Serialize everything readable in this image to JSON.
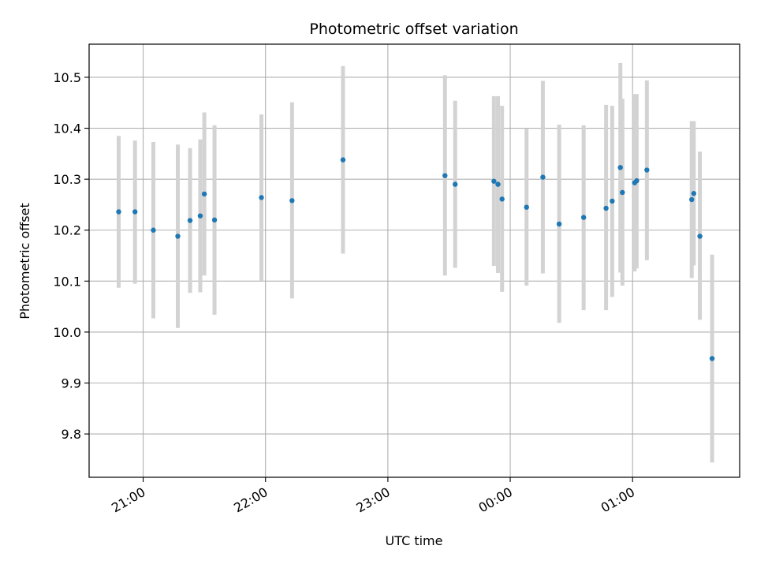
{
  "chart_data": {
    "type": "scatter",
    "title": "Photometric offset variation",
    "xlabel": "UTC time",
    "ylabel": "Photometric offset",
    "x_axis": "time",
    "x_ticks": [
      "21:00",
      "22:00",
      "23:00",
      "00:00",
      "01:00"
    ],
    "x_tick_minutes": [
      1260,
      1320,
      1380,
      1440,
      1500
    ],
    "xlim_minutes": [
      1233.5,
      1552.5
    ],
    "ylim": [
      9.715,
      10.565
    ],
    "y_ticks": [
      9.8,
      9.9,
      10.0,
      10.1,
      10.2,
      10.3,
      10.4,
      10.5
    ],
    "y_tick_labels": [
      "9.8",
      "9.9",
      "10.0",
      "10.1",
      "10.2",
      "10.3",
      "10.4",
      "10.5"
    ],
    "grid": true,
    "marker_color": "#1f77b4",
    "errorbar_color": "#d3d3d3",
    "points": [
      {
        "t": "20:48",
        "y": 10.236,
        "lo": 10.087,
        "hi": 10.385
      },
      {
        "t": "20:56",
        "y": 10.236,
        "lo": 10.095,
        "hi": 10.376
      },
      {
        "t": "21:05",
        "y": 10.2,
        "lo": 10.027,
        "hi": 10.373
      },
      {
        "t": "21:17",
        "y": 10.188,
        "lo": 10.008,
        "hi": 10.368
      },
      {
        "t": "21:23",
        "y": 10.219,
        "lo": 10.077,
        "hi": 10.361
      },
      {
        "t": "21:28",
        "y": 10.228,
        "lo": 10.078,
        "hi": 10.378
      },
      {
        "t": "21:30",
        "y": 10.271,
        "lo": 10.111,
        "hi": 10.431
      },
      {
        "t": "21:35",
        "y": 10.22,
        "lo": 10.034,
        "hi": 10.406
      },
      {
        "t": "21:58",
        "y": 10.264,
        "lo": 10.101,
        "hi": 10.427
      },
      {
        "t": "22:13",
        "y": 10.258,
        "lo": 10.066,
        "hi": 10.451
      },
      {
        "t": "22:38",
        "y": 10.338,
        "lo": 10.154,
        "hi": 10.522
      },
      {
        "t": "23:28",
        "y": 10.307,
        "lo": 10.111,
        "hi": 10.504
      },
      {
        "t": "23:33",
        "y": 10.29,
        "lo": 10.126,
        "hi": 10.454
      },
      {
        "t": "23:52",
        "y": 10.296,
        "lo": 10.13,
        "hi": 10.463
      },
      {
        "t": "23:54",
        "y": 10.29,
        "lo": 10.116,
        "hi": 10.463
      },
      {
        "t": "23:56",
        "y": 10.261,
        "lo": 10.079,
        "hi": 10.444
      },
      {
        "t": "00:08",
        "y": 10.245,
        "lo": 10.091,
        "hi": 10.399
      },
      {
        "t": "00:16",
        "y": 10.304,
        "lo": 10.115,
        "hi": 10.493
      },
      {
        "t": "00:24",
        "y": 10.212,
        "lo": 10.018,
        "hi": 10.407
      },
      {
        "t": "00:36",
        "y": 10.225,
        "lo": 10.043,
        "hi": 10.406
      },
      {
        "t": "00:47",
        "y": 10.243,
        "lo": 10.043,
        "hi": 10.446
      },
      {
        "t": "00:50",
        "y": 10.257,
        "lo": 10.069,
        "hi": 10.444
      },
      {
        "t": "00:54",
        "y": 10.323,
        "lo": 10.117,
        "hi": 10.528
      },
      {
        "t": "00:55",
        "y": 10.274,
        "lo": 10.091,
        "hi": 10.458
      },
      {
        "t": "01:01",
        "y": 10.293,
        "lo": 10.119,
        "hi": 10.467
      },
      {
        "t": "01:02",
        "y": 10.297,
        "lo": 10.125,
        "hi": 10.467
      },
      {
        "t": "01:07",
        "y": 10.318,
        "lo": 10.141,
        "hi": 10.494
      },
      {
        "t": "01:29",
        "y": 10.26,
        "lo": 10.106,
        "hi": 10.414
      },
      {
        "t": "01:30",
        "y": 10.272,
        "lo": 10.131,
        "hi": 10.414
      },
      {
        "t": "01:33",
        "y": 10.188,
        "lo": 10.024,
        "hi": 10.354
      },
      {
        "t": "01:39",
        "y": 9.948,
        "lo": 9.744,
        "hi": 10.152
      }
    ]
  }
}
